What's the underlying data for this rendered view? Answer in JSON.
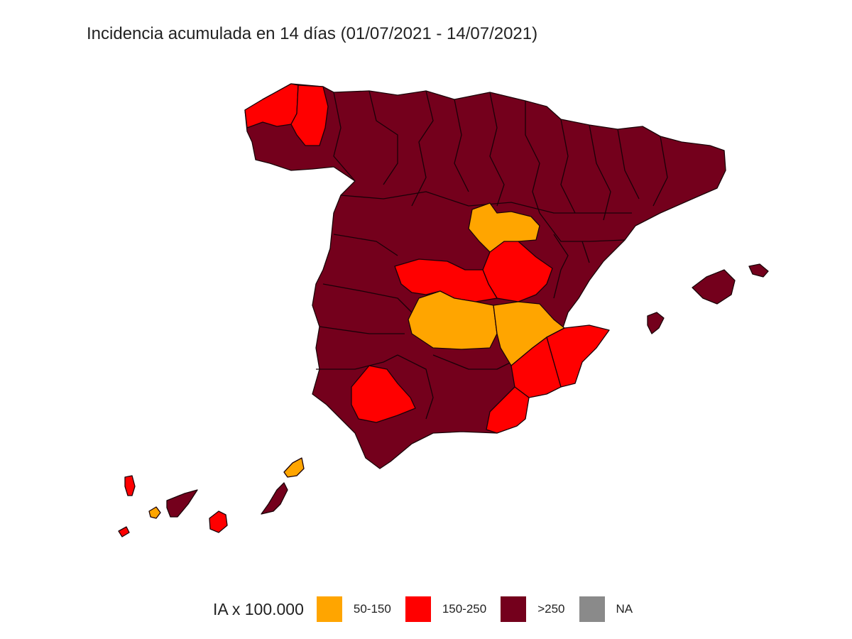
{
  "title": "Incidencia acumulada en 14 días (01/07/2021 - 14/07/2021)",
  "colors": {
    "low": "#FFA500",
    "mid": "#FF0000",
    "high": "#74001C",
    "na": "#8A8A8A",
    "border": "#1a0008"
  },
  "legend": {
    "title": "IA x 100.000",
    "items": [
      {
        "label": "50-150",
        "color": "#FFA500"
      },
      {
        "label": "150-250",
        "color": "#FF0000"
      },
      {
        "label": ">250",
        "color": "#74001C"
      },
      {
        "label": "NA",
        "color": "#8A8A8A"
      }
    ]
  }
}
